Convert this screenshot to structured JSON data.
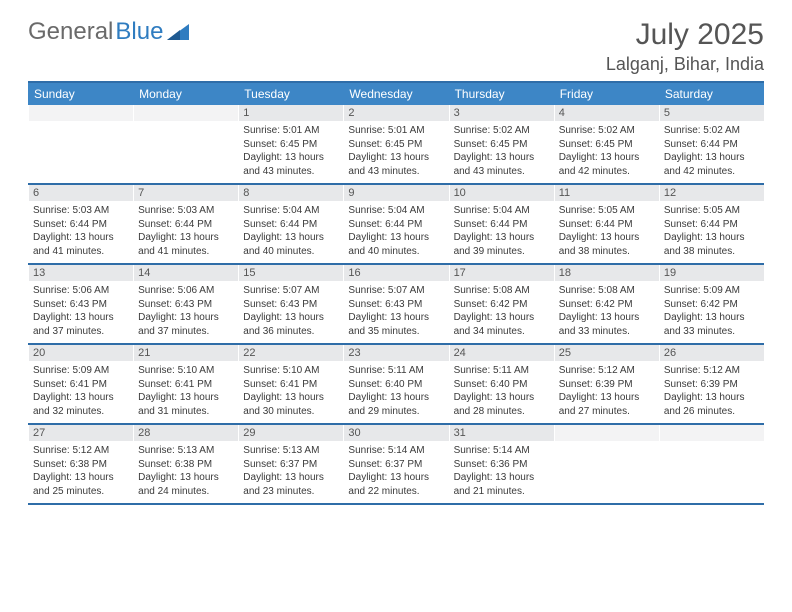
{
  "header": {
    "logo_text_a": "General",
    "logo_text_b": "Blue",
    "logo_color_gray": "#6a6a6a",
    "logo_color_blue": "#2f7cc0",
    "month_title": "July 2025",
    "location": "Lalganj, Bihar, India"
  },
  "colors": {
    "header_bg": "#3d86c6",
    "header_border": "#2f6da8",
    "daynum_bg": "#e7e8ea",
    "text": "#3a3a3a",
    "background": "#ffffff"
  },
  "day_headers": [
    "Sunday",
    "Monday",
    "Tuesday",
    "Wednesday",
    "Thursday",
    "Friday",
    "Saturday"
  ],
  "weeks": [
    [
      {
        "empty": true
      },
      {
        "empty": true
      },
      {
        "num": "1",
        "sunrise": "Sunrise: 5:01 AM",
        "sunset": "Sunset: 6:45 PM",
        "daylight1": "Daylight: 13 hours",
        "daylight2": "and 43 minutes."
      },
      {
        "num": "2",
        "sunrise": "Sunrise: 5:01 AM",
        "sunset": "Sunset: 6:45 PM",
        "daylight1": "Daylight: 13 hours",
        "daylight2": "and 43 minutes."
      },
      {
        "num": "3",
        "sunrise": "Sunrise: 5:02 AM",
        "sunset": "Sunset: 6:45 PM",
        "daylight1": "Daylight: 13 hours",
        "daylight2": "and 43 minutes."
      },
      {
        "num": "4",
        "sunrise": "Sunrise: 5:02 AM",
        "sunset": "Sunset: 6:45 PM",
        "daylight1": "Daylight: 13 hours",
        "daylight2": "and 42 minutes."
      },
      {
        "num": "5",
        "sunrise": "Sunrise: 5:02 AM",
        "sunset": "Sunset: 6:44 PM",
        "daylight1": "Daylight: 13 hours",
        "daylight2": "and 42 minutes."
      }
    ],
    [
      {
        "num": "6",
        "sunrise": "Sunrise: 5:03 AM",
        "sunset": "Sunset: 6:44 PM",
        "daylight1": "Daylight: 13 hours",
        "daylight2": "and 41 minutes."
      },
      {
        "num": "7",
        "sunrise": "Sunrise: 5:03 AM",
        "sunset": "Sunset: 6:44 PM",
        "daylight1": "Daylight: 13 hours",
        "daylight2": "and 41 minutes."
      },
      {
        "num": "8",
        "sunrise": "Sunrise: 5:04 AM",
        "sunset": "Sunset: 6:44 PM",
        "daylight1": "Daylight: 13 hours",
        "daylight2": "and 40 minutes."
      },
      {
        "num": "9",
        "sunrise": "Sunrise: 5:04 AM",
        "sunset": "Sunset: 6:44 PM",
        "daylight1": "Daylight: 13 hours",
        "daylight2": "and 40 minutes."
      },
      {
        "num": "10",
        "sunrise": "Sunrise: 5:04 AM",
        "sunset": "Sunset: 6:44 PM",
        "daylight1": "Daylight: 13 hours",
        "daylight2": "and 39 minutes."
      },
      {
        "num": "11",
        "sunrise": "Sunrise: 5:05 AM",
        "sunset": "Sunset: 6:44 PM",
        "daylight1": "Daylight: 13 hours",
        "daylight2": "and 38 minutes."
      },
      {
        "num": "12",
        "sunrise": "Sunrise: 5:05 AM",
        "sunset": "Sunset: 6:44 PM",
        "daylight1": "Daylight: 13 hours",
        "daylight2": "and 38 minutes."
      }
    ],
    [
      {
        "num": "13",
        "sunrise": "Sunrise: 5:06 AM",
        "sunset": "Sunset: 6:43 PM",
        "daylight1": "Daylight: 13 hours",
        "daylight2": "and 37 minutes."
      },
      {
        "num": "14",
        "sunrise": "Sunrise: 5:06 AM",
        "sunset": "Sunset: 6:43 PM",
        "daylight1": "Daylight: 13 hours",
        "daylight2": "and 37 minutes."
      },
      {
        "num": "15",
        "sunrise": "Sunrise: 5:07 AM",
        "sunset": "Sunset: 6:43 PM",
        "daylight1": "Daylight: 13 hours",
        "daylight2": "and 36 minutes."
      },
      {
        "num": "16",
        "sunrise": "Sunrise: 5:07 AM",
        "sunset": "Sunset: 6:43 PM",
        "daylight1": "Daylight: 13 hours",
        "daylight2": "and 35 minutes."
      },
      {
        "num": "17",
        "sunrise": "Sunrise: 5:08 AM",
        "sunset": "Sunset: 6:42 PM",
        "daylight1": "Daylight: 13 hours",
        "daylight2": "and 34 minutes."
      },
      {
        "num": "18",
        "sunrise": "Sunrise: 5:08 AM",
        "sunset": "Sunset: 6:42 PM",
        "daylight1": "Daylight: 13 hours",
        "daylight2": "and 33 minutes."
      },
      {
        "num": "19",
        "sunrise": "Sunrise: 5:09 AM",
        "sunset": "Sunset: 6:42 PM",
        "daylight1": "Daylight: 13 hours",
        "daylight2": "and 33 minutes."
      }
    ],
    [
      {
        "num": "20",
        "sunrise": "Sunrise: 5:09 AM",
        "sunset": "Sunset: 6:41 PM",
        "daylight1": "Daylight: 13 hours",
        "daylight2": "and 32 minutes."
      },
      {
        "num": "21",
        "sunrise": "Sunrise: 5:10 AM",
        "sunset": "Sunset: 6:41 PM",
        "daylight1": "Daylight: 13 hours",
        "daylight2": "and 31 minutes."
      },
      {
        "num": "22",
        "sunrise": "Sunrise: 5:10 AM",
        "sunset": "Sunset: 6:41 PM",
        "daylight1": "Daylight: 13 hours",
        "daylight2": "and 30 minutes."
      },
      {
        "num": "23",
        "sunrise": "Sunrise: 5:11 AM",
        "sunset": "Sunset: 6:40 PM",
        "daylight1": "Daylight: 13 hours",
        "daylight2": "and 29 minutes."
      },
      {
        "num": "24",
        "sunrise": "Sunrise: 5:11 AM",
        "sunset": "Sunset: 6:40 PM",
        "daylight1": "Daylight: 13 hours",
        "daylight2": "and 28 minutes."
      },
      {
        "num": "25",
        "sunrise": "Sunrise: 5:12 AM",
        "sunset": "Sunset: 6:39 PM",
        "daylight1": "Daylight: 13 hours",
        "daylight2": "and 27 minutes."
      },
      {
        "num": "26",
        "sunrise": "Sunrise: 5:12 AM",
        "sunset": "Sunset: 6:39 PM",
        "daylight1": "Daylight: 13 hours",
        "daylight2": "and 26 minutes."
      }
    ],
    [
      {
        "num": "27",
        "sunrise": "Sunrise: 5:12 AM",
        "sunset": "Sunset: 6:38 PM",
        "daylight1": "Daylight: 13 hours",
        "daylight2": "and 25 minutes."
      },
      {
        "num": "28",
        "sunrise": "Sunrise: 5:13 AM",
        "sunset": "Sunset: 6:38 PM",
        "daylight1": "Daylight: 13 hours",
        "daylight2": "and 24 minutes."
      },
      {
        "num": "29",
        "sunrise": "Sunrise: 5:13 AM",
        "sunset": "Sunset: 6:37 PM",
        "daylight1": "Daylight: 13 hours",
        "daylight2": "and 23 minutes."
      },
      {
        "num": "30",
        "sunrise": "Sunrise: 5:14 AM",
        "sunset": "Sunset: 6:37 PM",
        "daylight1": "Daylight: 13 hours",
        "daylight2": "and 22 minutes."
      },
      {
        "num": "31",
        "sunrise": "Sunrise: 5:14 AM",
        "sunset": "Sunset: 6:36 PM",
        "daylight1": "Daylight: 13 hours",
        "daylight2": "and 21 minutes."
      },
      {
        "empty": true
      },
      {
        "empty": true
      }
    ]
  ]
}
